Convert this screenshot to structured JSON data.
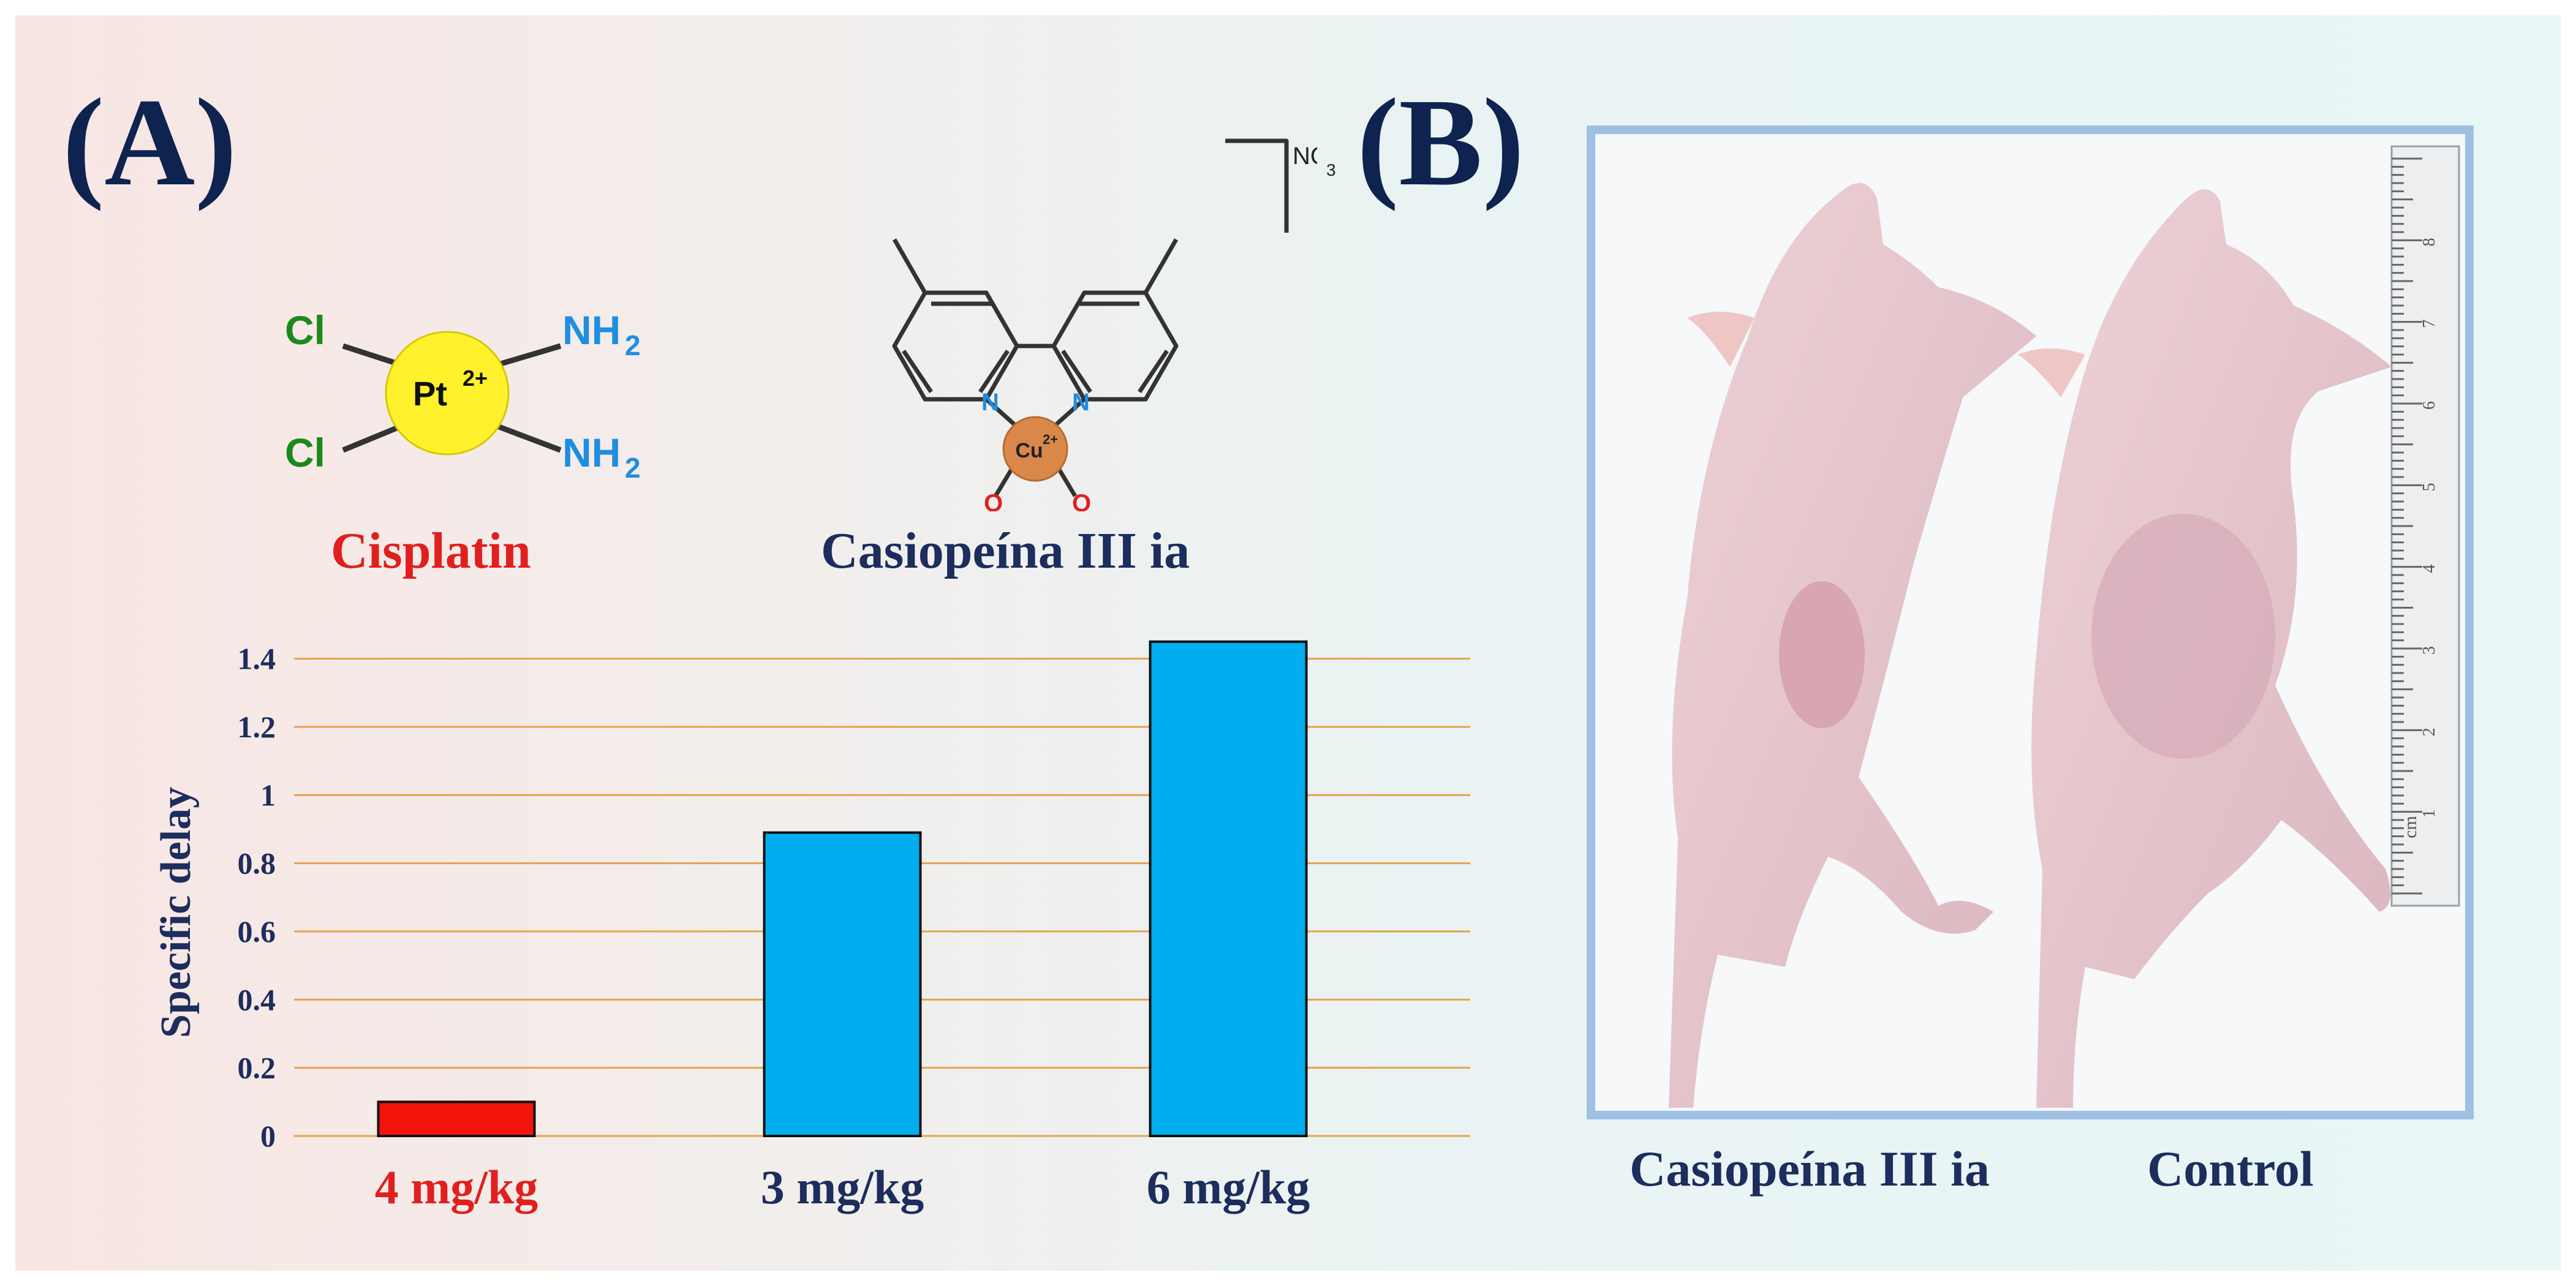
{
  "panel_a": {
    "label": "(A)",
    "cisplatin": {
      "name": "Cisplatin",
      "name_color": "#e0201f",
      "metal": "Pt",
      "metal_charge": "2+",
      "ligand_cl": "Cl",
      "ligand_nh": "NH",
      "subscript": "2"
    },
    "casiopeina": {
      "name": "Casiopeína  III ia",
      "name_color": "#1c2d5e",
      "metal": "Cu",
      "metal_charge": "2+",
      "nitrogen": "N",
      "oxygen": "O",
      "counterion": "NO",
      "counterion_sub": "3"
    }
  },
  "panel_b": {
    "label": "(B)",
    "caption_left": "Casiopeína III ia",
    "caption_right": "Control",
    "ruler_unit": "cm",
    "ruler_ticks": [
      "1",
      "2",
      "3",
      "4",
      "5",
      "6",
      "7",
      "8"
    ]
  },
  "chart_data": {
    "type": "bar",
    "ylabel": "Specific delay",
    "xlabel": "",
    "categories": [
      "4 mg/kg",
      "3 mg/kg",
      "6 mg/kg"
    ],
    "category_colors": [
      "#e0201f",
      "#1c2d5e",
      "#1c2d5e"
    ],
    "values": [
      0.1,
      0.89,
      1.45
    ],
    "bar_colors": [
      "#f2140b",
      "#00aeef",
      "#00aeef"
    ],
    "ylim": [
      0,
      1.5
    ],
    "yticks": [
      0,
      0.2,
      0.4,
      0.6,
      0.8,
      1,
      1.2,
      1.4
    ],
    "ytick_labels": [
      "0",
      "0.2",
      "0.4",
      "0.6",
      "0.8",
      "1",
      "1.2",
      "1.4"
    ],
    "grid": true,
    "grid_color": "#e6a24a",
    "legend": "none"
  }
}
